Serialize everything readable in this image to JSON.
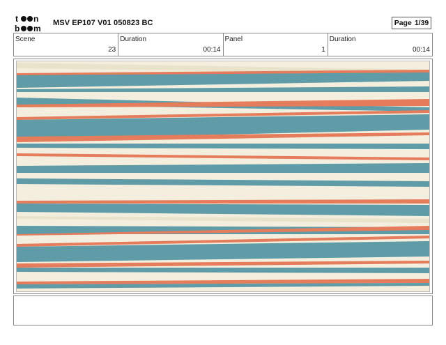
{
  "header": {
    "logo_text": "toonboom",
    "title": "MSV EP107 V01 050823 BC",
    "page_label": "Page",
    "page_value": "1/39"
  },
  "info": {
    "scene_label": "Scene",
    "scene_value": "23",
    "scene_duration_label": "Duration",
    "scene_duration_value": "00:14",
    "panel_label": "Panel",
    "panel_value": "1",
    "panel_duration_label": "Duration",
    "panel_duration_value": "00:14"
  },
  "panel": {
    "colors": {
      "background": "#f3eedd",
      "teal": "#5f9ca8",
      "orange": "#e57c5c",
      "cream": "#eee9d4"
    }
  },
  "notes": {
    "text": ""
  }
}
